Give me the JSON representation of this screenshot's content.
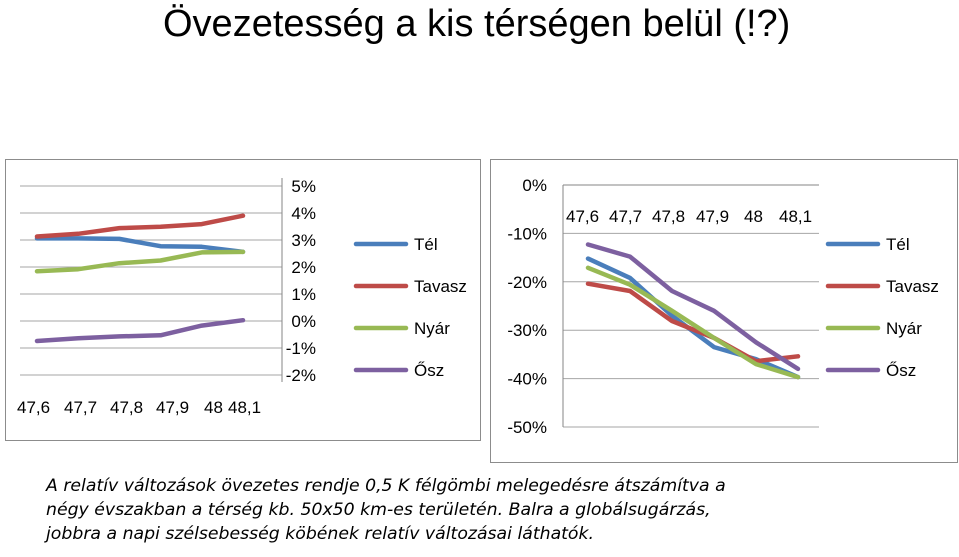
{
  "title": "Övezetesség a kis térségen belül (!?)",
  "caption": [
    "A relatív változások övezetes rendje 0,5 K félgömbi melegedésre átszámítva a",
    "négy évszakban a térség kb. 50x50 km-es területén. Balra a globálsugárzás,",
    "jobbra a napi szélsebesség köbének relatív változásai láthatók."
  ],
  "colors": {
    "Tél": "#4a7ebb",
    "Tavasz": "#be4b48",
    "Nyár": "#98b954",
    "Ősz": "#7d60a0",
    "grid": "#a6a6a6",
    "axis": "#868686"
  },
  "chart_data": [
    {
      "type": "line",
      "title": "",
      "xlabel": "",
      "ylabel": "",
      "x": [
        47.6,
        47.7,
        47.8,
        47.9,
        48.0,
        48.1
      ],
      "x_tick_labels": [
        "47,6",
        "47,7",
        "47,8",
        "47,9",
        "48",
        "48,1"
      ],
      "y_tick_labels": [
        "5%",
        "4%",
        "3%",
        "2%",
        "1%",
        "0%",
        "-1%",
        "-2%"
      ],
      "ylim": [
        -2,
        5
      ],
      "y_axis_position": "right",
      "grid": true,
      "legend_position": "right",
      "series": [
        {
          "name": "Tél",
          "values": [
            3.06,
            3.06,
            3.04,
            2.77,
            2.75,
            2.56
          ]
        },
        {
          "name": "Tavasz",
          "values": [
            3.13,
            3.23,
            3.44,
            3.49,
            3.59,
            3.9
          ]
        },
        {
          "name": "Nyár",
          "values": [
            1.84,
            1.92,
            2.14,
            2.24,
            2.54,
            2.56
          ]
        },
        {
          "name": "Ősz",
          "values": [
            -0.74,
            -0.64,
            -0.57,
            -0.53,
            -0.17,
            0.03
          ]
        }
      ]
    },
    {
      "type": "line",
      "title": "",
      "xlabel": "",
      "ylabel": "",
      "x": [
        47.6,
        47.7,
        47.8,
        47.9,
        48.0,
        48.1
      ],
      "x_tick_labels": [
        "47,6",
        "47,7",
        "47,8",
        "47,9",
        "48",
        "48,1"
      ],
      "x_axis_position": "top",
      "y_tick_labels": [
        "0%",
        "-10%",
        "-20%",
        "-30%",
        "-40%",
        "-50%"
      ],
      "ylim": [
        -50,
        0
      ],
      "grid": true,
      "legend_position": "right",
      "series": [
        {
          "name": "Tél",
          "values": [
            -15.2,
            -19.2,
            -27.0,
            -33.5,
            -36.0,
            -39.7
          ]
        },
        {
          "name": "Tavasz",
          "values": [
            -20.4,
            -21.9,
            -28.1,
            -31.6,
            -36.4,
            -35.4
          ]
        },
        {
          "name": "Nyár",
          "values": [
            -17.1,
            -20.6,
            -26.0,
            -31.6,
            -37.0,
            -39.7
          ]
        },
        {
          "name": "Ősz",
          "values": [
            -12.3,
            -14.8,
            -21.9,
            -26.0,
            -32.5,
            -38.0
          ]
        }
      ]
    }
  ]
}
